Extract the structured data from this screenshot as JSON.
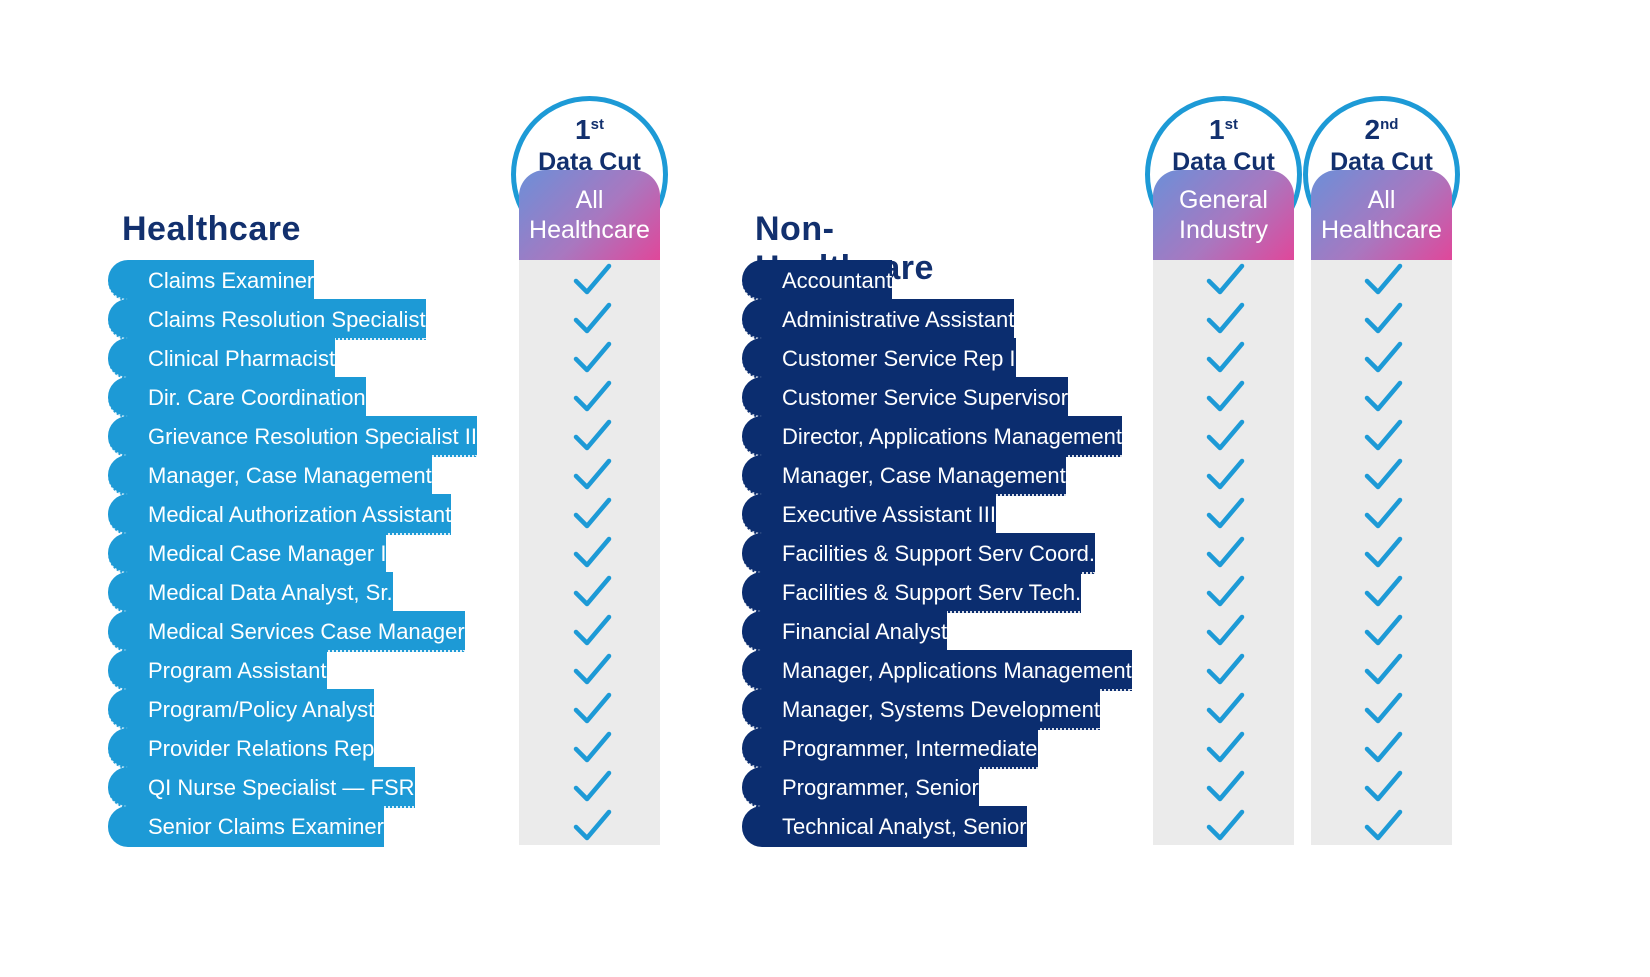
{
  "healthcare": {
    "title": "Healthcare",
    "columns": [
      {
        "cut_number": "1",
        "cut_suffix": "st",
        "cut_label": "Data Cut",
        "header_line1": "All",
        "header_line2": "Healthcare"
      }
    ],
    "rows": [
      "Claims Examiner",
      "Claims Resolution Specialist",
      "Clinical Pharmacist",
      "Dir. Care Coordination",
      "Grievance Resolution Specialist II",
      "Manager, Case Management",
      "Medical Authorization Assistant",
      "Medical Case Manager I",
      "Medical Data Analyst, Sr.",
      "Medical Services Case Manager",
      "Program Assistant",
      "Program/Policy Analyst",
      "Provider Relations Rep",
      "QI Nurse Specialist — FSR",
      "Senior Claims Examiner"
    ]
  },
  "non_healthcare": {
    "title": "Non-Healthcare",
    "columns": [
      {
        "cut_number": "1",
        "cut_suffix": "st",
        "cut_label": "Data Cut",
        "header_line1": "General",
        "header_line2": "Industry"
      },
      {
        "cut_number": "2",
        "cut_suffix": "nd",
        "cut_label": "Data Cut",
        "header_line1": "All",
        "header_line2": "Healthcare"
      }
    ],
    "rows": [
      "Accountant",
      "Administrative Assistant",
      "Customer Service Rep I",
      "Customer Service Supervisor",
      "Director, Applications Management",
      "Manager, Case Management",
      "Executive Assistant III",
      "Facilities & Support Serv Coord.",
      "Facilities & Support Serv Tech.",
      "Financial Analyst",
      "Manager, Applications Management",
      "Manager, Systems Development",
      "Programmer, Intermediate",
      "Programmer, Senior",
      "Technical Analyst, Senior"
    ]
  },
  "icons": {
    "check": "checkmark-icon"
  },
  "colors": {
    "healthcare_row": "#1d9ad6",
    "non_healthcare_row": "#0b2d6f",
    "title": "#12306e",
    "check": "#1d9ad6",
    "circle": "#1d9ad6"
  }
}
